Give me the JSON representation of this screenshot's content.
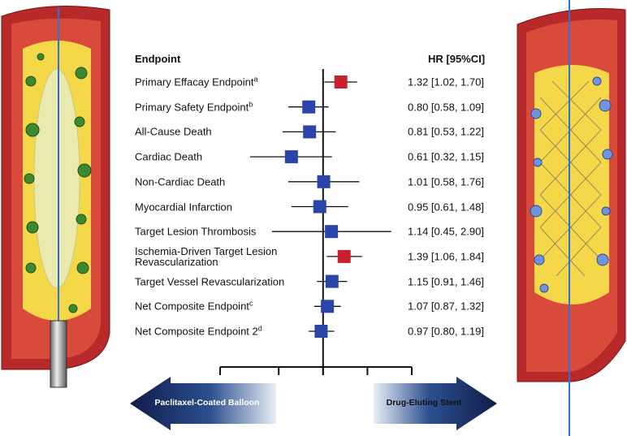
{
  "chart_data": {
    "type": "forest",
    "endpoint_header": "Endpoint",
    "hr_header": "HR [95%CI]",
    "categories": [
      "Primary Effacay Endpoint",
      "Primary Safety Endpoint",
      "All-Cause Death",
      "Cardiac Death",
      "Non-Cardiac Death",
      "Myocardial Infarction",
      "Target Lesion Thrombosis",
      "Ischemia-Driven Target Lesion\nRevascularization",
      "Target Vessel Revascularization",
      "Net Composite Endpoint",
      "Net Composite Endpoint 2"
    ],
    "superscripts": [
      "a",
      "b",
      null,
      null,
      null,
      null,
      null,
      null,
      null,
      "c",
      "d"
    ],
    "values": [
      1.32,
      0.8,
      0.81,
      0.61,
      1.01,
      0.95,
      1.14,
      1.39,
      1.15,
      1.07,
      0.97
    ],
    "lower": [
      1.02,
      0.58,
      0.53,
      0.32,
      0.58,
      0.61,
      0.45,
      1.06,
      0.91,
      0.87,
      0.8
    ],
    "upper": [
      1.7,
      1.09,
      1.22,
      1.15,
      1.76,
      1.48,
      2.9,
      1.84,
      1.46,
      1.32,
      1.19
    ],
    "value_labels": [
      "1.32 [1.02, 1.70]",
      "0.80 [0.58, 1.09]",
      "0.81 [0.53, 1.22]",
      "0.61 [0.32, 1.15]",
      "1.01 [0.58, 1.76]",
      "0.95 [0.61, 1.48]",
      "1.14 [0.45, 2.90]",
      "1.39 [1.06, 1.84]",
      "1.15 [0.91, 1.46]",
      "1.07 [0.87, 1.32]",
      "0.97 [0.80, 1.19]"
    ],
    "colors": [
      "#c8202f",
      "#2a45a8",
      "#2a45a8",
      "#2a45a8",
      "#2a45a8",
      "#2a45a8",
      "#2a45a8",
      "#c8202f",
      "#2a45a8",
      "#2a45a8",
      "#2a45a8"
    ],
    "xscale": "log",
    "xlim": [
      0.2,
      4
    ],
    "xticks": [
      0.2,
      0.5,
      1,
      2,
      4
    ],
    "reference_line": 1,
    "left_arrow": "Paclitaxel-Coated Balloon",
    "right_arrow": "Drug-Eluting Stent"
  }
}
